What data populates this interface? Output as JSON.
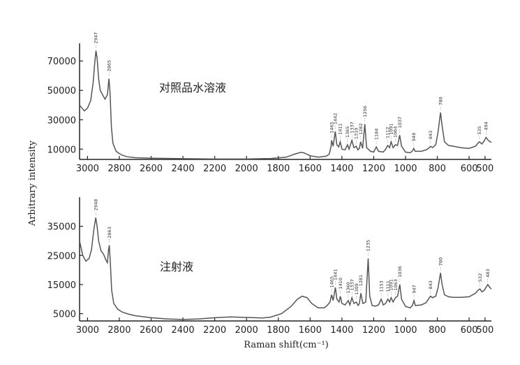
{
  "chart_data": [
    {
      "type": "line",
      "title": "对照品水溶液",
      "xlabel": "Raman shift(cm⁻¹)",
      "ylabel": "Arbitrary intensity",
      "xlim": [
        3050,
        460
      ],
      "x_reversed": true,
      "ylim": [
        3000,
        82000
      ],
      "x_ticks": [
        3000,
        2800,
        2600,
        2400,
        2200,
        2000,
        1800,
        1600,
        1400,
        1200,
        1000,
        800,
        600,
        500
      ],
      "y_ticks": [
        10000,
        30000,
        50000,
        70000
      ],
      "peak_labels": [
        "2947",
        "2865",
        "1465",
        "1442",
        "1411",
        "1365",
        "1310",
        "1337",
        "1282",
        "1256",
        "1184",
        "1112",
        "1091",
        "1064",
        "1037",
        "948",
        "843",
        "780",
        "535",
        "494"
      ],
      "points": [
        [
          3050,
          40000
        ],
        [
          3020,
          36000
        ],
        [
          3000,
          38000
        ],
        [
          2980,
          43000
        ],
        [
          2965,
          55000
        ],
        [
          2955,
          68000
        ],
        [
          2947,
          77000
        ],
        [
          2940,
          72000
        ],
        [
          2930,
          58000
        ],
        [
          2920,
          50000
        ],
        [
          2905,
          47000
        ],
        [
          2890,
          44000
        ],
        [
          2875,
          47000
        ],
        [
          2865,
          58000
        ],
        [
          2858,
          48000
        ],
        [
          2850,
          25000
        ],
        [
          2840,
          14000
        ],
        [
          2820,
          8500
        ],
        [
          2800,
          7000
        ],
        [
          2780,
          5800
        ],
        [
          2750,
          4800
        ],
        [
          2700,
          4200
        ],
        [
          2600,
          3800
        ],
        [
          2400,
          3500
        ],
        [
          2200,
          3300
        ],
        [
          2000,
          3300
        ],
        [
          1850,
          3600
        ],
        [
          1750,
          4500
        ],
        [
          1700,
          6500
        ],
        [
          1660,
          7800
        ],
        [
          1640,
          7500
        ],
        [
          1600,
          5500
        ],
        [
          1550,
          4500
        ],
        [
          1500,
          5200
        ],
        [
          1480,
          6500
        ],
        [
          1468,
          12000
        ],
        [
          1465,
          16000
        ],
        [
          1455,
          12000
        ],
        [
          1442,
          22000
        ],
        [
          1432,
          13000
        ],
        [
          1420,
          11500
        ],
        [
          1411,
          15000
        ],
        [
          1400,
          10000
        ],
        [
          1380,
          9500
        ],
        [
          1365,
          13000
        ],
        [
          1355,
          10000
        ],
        [
          1337,
          16000
        ],
        [
          1325,
          11000
        ],
        [
          1310,
          12000
        ],
        [
          1300,
          9500
        ],
        [
          1290,
          10500
        ],
        [
          1282,
          15000
        ],
        [
          1270,
          10500
        ],
        [
          1256,
          27000
        ],
        [
          1245,
          11000
        ],
        [
          1220,
          8500
        ],
        [
          1200,
          8000
        ],
        [
          1184,
          11500
        ],
        [
          1170,
          8500
        ],
        [
          1140,
          8000
        ],
        [
          1125,
          10000
        ],
        [
          1112,
          12500
        ],
        [
          1100,
          11000
        ],
        [
          1091,
          15000
        ],
        [
          1078,
          11000
        ],
        [
          1064,
          13000
        ],
        [
          1050,
          12500
        ],
        [
          1037,
          19500
        ],
        [
          1025,
          12000
        ],
        [
          1000,
          8000
        ],
        [
          970,
          7500
        ],
        [
          955,
          9000
        ],
        [
          948,
          10500
        ],
        [
          940,
          8500
        ],
        [
          900,
          8500
        ],
        [
          870,
          9500
        ],
        [
          850,
          11000
        ],
        [
          843,
          12000
        ],
        [
          830,
          11000
        ],
        [
          810,
          13000
        ],
        [
          795,
          22000
        ],
        [
          780,
          35000
        ],
        [
          770,
          26000
        ],
        [
          755,
          15000
        ],
        [
          730,
          12500
        ],
        [
          700,
          12000
        ],
        [
          650,
          11000
        ],
        [
          600,
          10500
        ],
        [
          560,
          12000
        ],
        [
          545,
          14000
        ],
        [
          535,
          15000
        ],
        [
          520,
          13500
        ],
        [
          505,
          15500
        ],
        [
          494,
          18000
        ],
        [
          480,
          16000
        ],
        [
          460,
          14500
        ]
      ]
    },
    {
      "type": "line",
      "title": "注射液",
      "xlabel": "Raman shift(cm⁻¹)",
      "ylabel": "Arbitrary intensity",
      "xlim": [
        3050,
        460
      ],
      "x_reversed": true,
      "ylim": [
        2500,
        45000
      ],
      "x_ticks": [
        3000,
        2800,
        2600,
        2400,
        2200,
        2000,
        1800,
        1600,
        1400,
        1200,
        1000,
        800,
        600,
        500
      ],
      "y_ticks": [
        5000,
        15000,
        25000,
        35000
      ],
      "peak_labels": [
        "2948",
        "2863",
        "1465",
        "1441",
        "1410",
        "1360",
        "1309",
        "1337",
        "1281",
        "1235",
        "1153",
        "1111",
        "1091",
        "1063",
        "1036",
        "947",
        "843",
        "780",
        "532",
        "483"
      ],
      "points": [
        [
          3050,
          30000
        ],
        [
          3030,
          25000
        ],
        [
          3010,
          23000
        ],
        [
          2990,
          24000
        ],
        [
          2975,
          27000
        ],
        [
          2960,
          34000
        ],
        [
          2948,
          38000
        ],
        [
          2940,
          35000
        ],
        [
          2930,
          30000
        ],
        [
          2915,
          26500
        ],
        [
          2900,
          25500
        ],
        [
          2885,
          23500
        ],
        [
          2875,
          22500
        ],
        [
          2868,
          27000
        ],
        [
          2863,
          28500
        ],
        [
          2856,
          22000
        ],
        [
          2848,
          13000
        ],
        [
          2835,
          8500
        ],
        [
          2810,
          6500
        ],
        [
          2780,
          5500
        ],
        [
          2740,
          4800
        ],
        [
          2700,
          4300
        ],
        [
          2600,
          3600
        ],
        [
          2500,
          3200
        ],
        [
          2400,
          3000
        ],
        [
          2300,
          3200
        ],
        [
          2200,
          3600
        ],
        [
          2100,
          3900
        ],
        [
          2000,
          3700
        ],
        [
          1900,
          3500
        ],
        [
          1850,
          3800
        ],
        [
          1780,
          5000
        ],
        [
          1720,
          7500
        ],
        [
          1680,
          10000
        ],
        [
          1650,
          11000
        ],
        [
          1620,
          10500
        ],
        [
          1590,
          8500
        ],
        [
          1550,
          7000
        ],
        [
          1510,
          7000
        ],
        [
          1490,
          8000
        ],
        [
          1475,
          9000
        ],
        [
          1465,
          11500
        ],
        [
          1455,
          9500
        ],
        [
          1441,
          14000
        ],
        [
          1432,
          10000
        ],
        [
          1418,
          9000
        ],
        [
          1410,
          11000
        ],
        [
          1400,
          8500
        ],
        [
          1380,
          8000
        ],
        [
          1360,
          9500
        ],
        [
          1350,
          8000
        ],
        [
          1337,
          10500
        ],
        [
          1325,
          8500
        ],
        [
          1309,
          9000
        ],
        [
          1298,
          7800
        ],
        [
          1290,
          8500
        ],
        [
          1281,
          12000
        ],
        [
          1268,
          8500
        ],
        [
          1250,
          9000
        ],
        [
          1235,
          24000
        ],
        [
          1225,
          11000
        ],
        [
          1210,
          7800
        ],
        [
          1190,
          7600
        ],
        [
          1170,
          8000
        ],
        [
          1153,
          10000
        ],
        [
          1140,
          8000
        ],
        [
          1125,
          8500
        ],
        [
          1111,
          10000
        ],
        [
          1100,
          9000
        ],
        [
          1091,
          10500
        ],
        [
          1078,
          9000
        ],
        [
          1063,
          10500
        ],
        [
          1050,
          11000
        ],
        [
          1036,
          15000
        ],
        [
          1025,
          10000
        ],
        [
          1000,
          7500
        ],
        [
          970,
          7000
        ],
        [
          955,
          8000
        ],
        [
          947,
          9500
        ],
        [
          938,
          7800
        ],
        [
          900,
          8000
        ],
        [
          870,
          8800
        ],
        [
          850,
          10500
        ],
        [
          843,
          11000
        ],
        [
          830,
          10500
        ],
        [
          810,
          11000
        ],
        [
          795,
          14000
        ],
        [
          780,
          19000
        ],
        [
          770,
          15000
        ],
        [
          755,
          11500
        ],
        [
          730,
          10800
        ],
        [
          700,
          10600
        ],
        [
          650,
          10600
        ],
        [
          600,
          10800
        ],
        [
          560,
          12000
        ],
        [
          545,
          13000
        ],
        [
          532,
          13500
        ],
        [
          520,
          12500
        ],
        [
          505,
          13000
        ],
        [
          483,
          15000
        ],
        [
          470,
          14000
        ],
        [
          460,
          13500
        ]
      ]
    }
  ]
}
